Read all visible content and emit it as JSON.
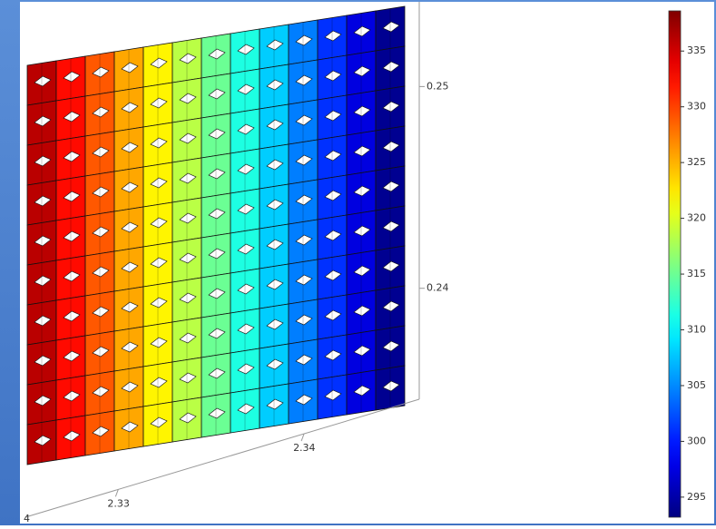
{
  "chart_data": {
    "type": "lattice",
    "columns": [
      336,
      332.5,
      329,
      325.5,
      322,
      318.5,
      315,
      311.5,
      308,
      304.5,
      301,
      297.5,
      294
    ],
    "rows": 10,
    "colormap": "jet",
    "clim": [
      293.2,
      338.6
    ],
    "cticks": [
      295,
      300,
      305,
      310,
      315,
      320,
      325,
      330,
      335
    ],
    "xlim": [
      2.325,
      2.3462
    ],
    "xticks": [
      2.33,
      2.34
    ],
    "ylim": [
      0.2345,
      0.2542
    ],
    "yticks": [
      0.24,
      0.25
    ],
    "corner_label": "4"
  }
}
